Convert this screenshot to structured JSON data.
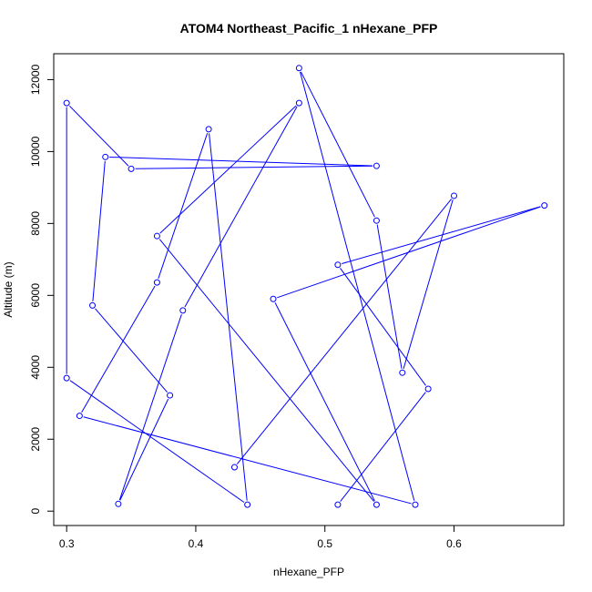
{
  "chart_data": {
    "type": "line",
    "title": "ATOM4 Northeast_Pacific_1 nHexane_PFP",
    "xlabel": "nHexane_PFP",
    "ylabel": "Altitude (m)",
    "xlim": [
      0.29,
      0.685
    ],
    "ylim": [
      -400,
      12720
    ],
    "x_ticks": [
      0.3,
      0.4,
      0.5,
      0.6
    ],
    "x_tick_labels": [
      "0.3",
      "0.4",
      "0.5",
      "0.6"
    ],
    "y_ticks": [
      0,
      2000,
      4000,
      6000,
      8000,
      10000,
      12000
    ],
    "y_tick_labels": [
      "0",
      "2000",
      "4000",
      "6000",
      "8000",
      "10000",
      "12000"
    ],
    "series": [
      {
        "color": "#0000ff",
        "marker": "open-circle",
        "points": [
          {
            "x": 0.51,
            "y": 180
          },
          {
            "x": 0.58,
            "y": 3400
          },
          {
            "x": 0.51,
            "y": 6850
          },
          {
            "x": 0.67,
            "y": 8500
          },
          {
            "x": 0.46,
            "y": 5900
          },
          {
            "x": 0.54,
            "y": 180
          },
          {
            "x": 0.37,
            "y": 7650
          },
          {
            "x": 0.48,
            "y": 11350
          },
          {
            "x": 0.39,
            "y": 5580
          },
          {
            "x": 0.34,
            "y": 200
          },
          {
            "x": 0.38,
            "y": 3220
          },
          {
            "x": 0.32,
            "y": 5720
          },
          {
            "x": 0.33,
            "y": 9850
          },
          {
            "x": 0.54,
            "y": 9600
          },
          {
            "x": 0.35,
            "y": 9520
          },
          {
            "x": 0.3,
            "y": 11350
          },
          {
            "x": 0.3,
            "y": 3700
          },
          {
            "x": 0.44,
            "y": 180
          },
          {
            "x": 0.41,
            "y": 10620
          },
          {
            "x": 0.37,
            "y": 6360
          },
          {
            "x": 0.31,
            "y": 2650
          },
          {
            "x": 0.57,
            "y": 180
          },
          {
            "x": 0.48,
            "y": 12320
          },
          {
            "x": 0.54,
            "y": 8080
          },
          {
            "x": 0.56,
            "y": 3850
          },
          {
            "x": 0.6,
            "y": 8770
          },
          {
            "x": 0.43,
            "y": 1220
          }
        ]
      }
    ]
  }
}
